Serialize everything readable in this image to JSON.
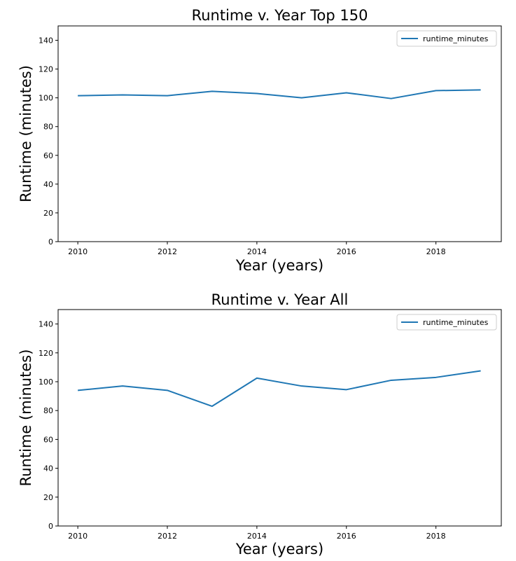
{
  "chart_data": [
    {
      "type": "line",
      "title": "Runtime v. Year Top 150",
      "xlabel": "Year (years)",
      "ylabel": "Runtime (minutes)",
      "xlim": [
        2009.56,
        2019.46
      ],
      "ylim": [
        0,
        150
      ],
      "xticks": [
        2010,
        2012,
        2014,
        2016,
        2018
      ],
      "yticks": [
        0,
        20,
        40,
        60,
        80,
        100,
        120,
        140
      ],
      "grid": false,
      "legend_position": "top-right",
      "series": [
        {
          "name": "runtime_minutes",
          "color": "#1f77b4",
          "x": [
            2010,
            2011,
            2012,
            2013,
            2014,
            2015,
            2016,
            2017,
            2018,
            2019
          ],
          "y": [
            101.5,
            102,
            101.5,
            104.5,
            103,
            100,
            103.5,
            99.5,
            105,
            105.5
          ]
        }
      ]
    },
    {
      "type": "line",
      "title": "Runtime v. Year All",
      "xlabel": "Year (years)",
      "ylabel": "Runtime (minutes)",
      "xlim": [
        2009.56,
        2019.46
      ],
      "ylim": [
        0,
        150
      ],
      "xticks": [
        2010,
        2012,
        2014,
        2016,
        2018
      ],
      "yticks": [
        0,
        20,
        40,
        60,
        80,
        100,
        120,
        140
      ],
      "grid": false,
      "legend_position": "top-right",
      "series": [
        {
          "name": "runtime_minutes",
          "color": "#1f77b4",
          "x": [
            2010,
            2011,
            2012,
            2013,
            2014,
            2015,
            2016,
            2017,
            2018,
            2019
          ],
          "y": [
            94,
            97,
            94,
            83,
            102.5,
            97,
            94.5,
            101,
            103,
            107.5
          ]
        }
      ]
    }
  ]
}
